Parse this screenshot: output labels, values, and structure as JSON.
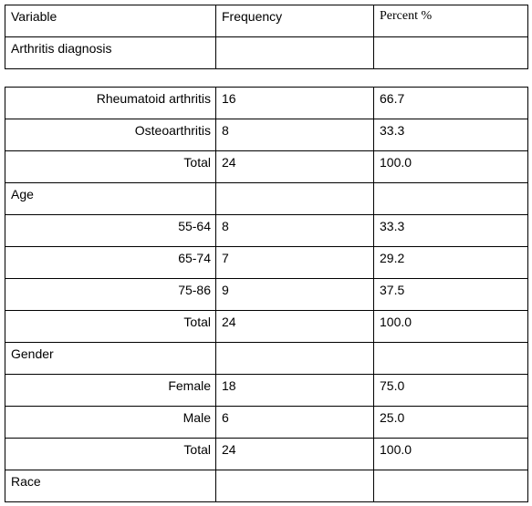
{
  "table1": {
    "header": [
      "Variable",
      "Frequency",
      "Percent %"
    ],
    "section": "Arthritis diagnosis"
  },
  "table2": {
    "rows": [
      [
        "Rheumatoid arthritis",
        "16",
        "66.7"
      ],
      [
        "Osteoarthritis",
        "8",
        "33.3"
      ],
      [
        "Total",
        "24",
        "100.0"
      ],
      {
        "section": "Age"
      },
      [
        "55-64",
        "8",
        "33.3"
      ],
      [
        "65-74",
        "7",
        "29.2"
      ],
      [
        "75-86",
        "9",
        "37.5"
      ],
      [
        "Total",
        "24",
        "100.0"
      ],
      {
        "section": "Gender"
      },
      [
        "Female",
        "18",
        "75.0"
      ],
      [
        "Male",
        "6",
        "25.0"
      ],
      [
        "Total",
        "24",
        "100.0"
      ],
      {
        "section": "Race"
      }
    ]
  }
}
